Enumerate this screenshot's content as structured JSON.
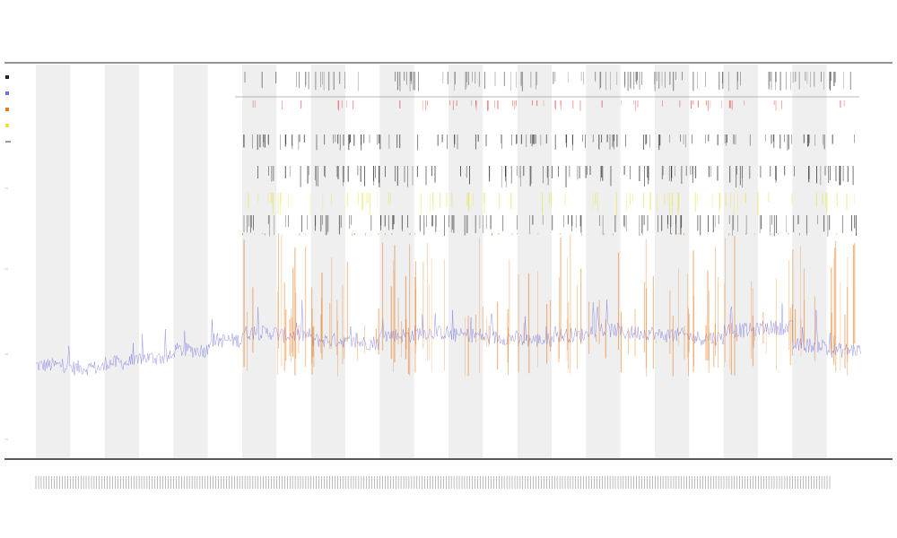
{
  "chart_data": {
    "type": "line",
    "title": "",
    "subtitle_lines": [
      "",
      ""
    ],
    "xlabel": "",
    "ylabel": "",
    "x_range": [
      0,
      24
    ],
    "band_count": 24,
    "series": [
      {
        "name": "",
        "color": "#6f6fe0",
        "baseline": [
          0.12,
          0.11,
          0.13,
          0.15,
          0.18,
          0.22,
          0.25,
          0.24,
          0.22,
          0.21,
          0.24,
          0.25,
          0.24,
          0.23,
          0.22,
          0.24,
          0.26,
          0.25,
          0.24,
          0.23,
          0.26,
          0.27,
          0.2,
          0.18
        ]
      },
      {
        "name": "",
        "color": "#e8791c",
        "activity_start": 6
      },
      {
        "name": "",
        "color": "#e9e24a",
        "activity_start": 6
      },
      {
        "name": "",
        "color": "#222222",
        "activity_start": 6
      }
    ],
    "legend": {
      "placement": "top-left"
    },
    "grid": false
  }
}
